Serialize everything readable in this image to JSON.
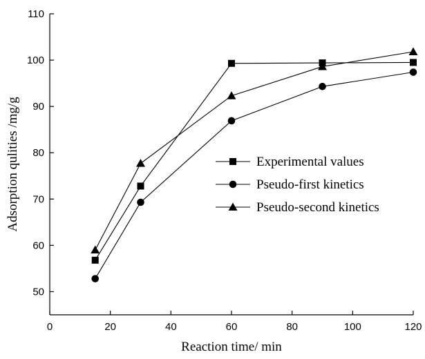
{
  "chart_data": {
    "type": "line",
    "x": [
      15,
      30,
      60,
      90,
      120
    ],
    "series": [
      {
        "name": "Experimental values",
        "marker": "square",
        "values": [
          56.8,
          72.8,
          99.3,
          99.4,
          99.5
        ]
      },
      {
        "name": "Pseudo-first kinetics",
        "marker": "circle",
        "values": [
          52.8,
          69.3,
          86.9,
          94.3,
          97.4
        ]
      },
      {
        "name": "Pseudo-second kinetics",
        "marker": "triangle",
        "values": [
          59.0,
          77.7,
          92.3,
          98.6,
          101.8
        ]
      }
    ],
    "xlabel": "Reaction time/ min",
    "ylabel": "Adsorption qulities /mg/g",
    "xlim": [
      0,
      120
    ],
    "ylim": [
      45,
      110
    ],
    "xticks": [
      0,
      20,
      40,
      60,
      80,
      100,
      120
    ],
    "yticks": [
      50,
      60,
      70,
      80,
      90,
      100,
      110
    ],
    "grid": false,
    "legend_position": "center-right"
  }
}
